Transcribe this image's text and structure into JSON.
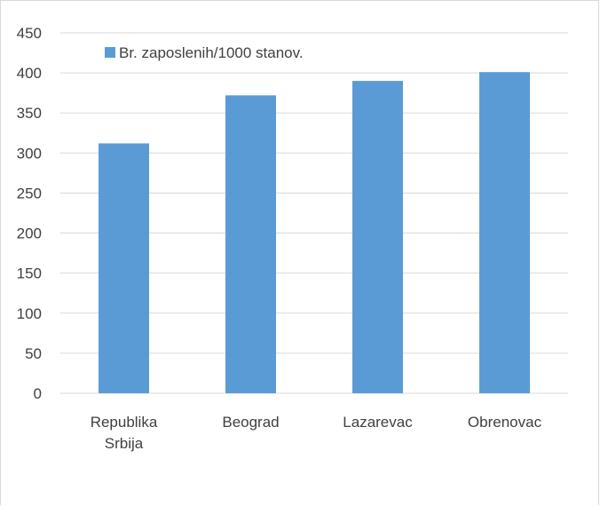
{
  "chart_data": {
    "type": "bar",
    "categories": [
      [
        "Republika",
        "Srbija"
      ],
      [
        "Beograd"
      ],
      [
        "Lazarevac"
      ],
      [
        "Obrenovac"
      ]
    ],
    "series": [
      {
        "name": "Br. zaposlenih/1000 stanov.",
        "values": [
          312,
          372,
          390,
          401
        ],
        "color": "#5b9bd5"
      }
    ],
    "ylim": [
      0,
      450
    ],
    "yticks": [
      "0",
      "50",
      "100",
      "150",
      "200",
      "250",
      "300",
      "350",
      "400",
      "450"
    ],
    "grid": true,
    "legend_position": "top-left"
  }
}
